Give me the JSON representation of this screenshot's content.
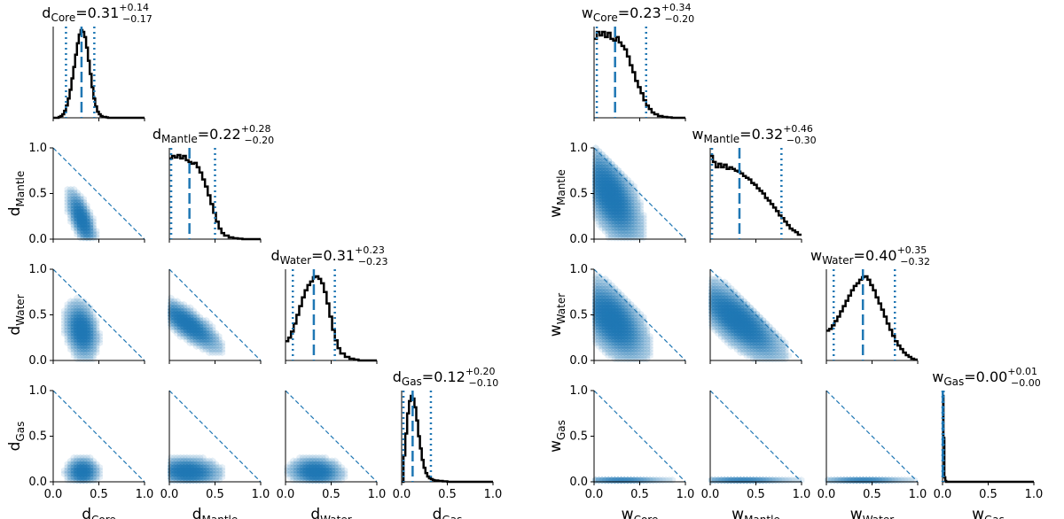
{
  "chart_data": [
    {
      "type": "corner",
      "panel_set": "d",
      "parameters": [
        "Core",
        "Mantle",
        "Water",
        "Gas"
      ],
      "axis_symbol": "d",
      "axis_labels": [
        "Core",
        "Mantle",
        "Water",
        "Gas"
      ],
      "range": [
        0,
        1
      ],
      "ticks": [
        "0.0",
        "0.5",
        "1.0"
      ],
      "titles": [
        {
          "sym": "d",
          "sub": "Core",
          "text": "=0.31",
          "sup": "+0.14",
          "low": "−0.17"
        },
        {
          "sym": "d",
          "sub": "Mantle",
          "text": "=0.22",
          "sup": "+0.28",
          "low": "−0.20"
        },
        {
          "sym": "d",
          "sub": "Water",
          "text": "=0.31",
          "sup": "+0.23",
          "low": "−0.23"
        },
        {
          "sym": "d",
          "sub": "Gas",
          "text": "=0.12",
          "sup": "+0.20",
          "low": "−0.10"
        }
      ],
      "marginals": [
        {
          "median": 0.31,
          "lo": 0.14,
          "hi": 0.45,
          "x": [
            0.0,
            0.02,
            0.04,
            0.06,
            0.08,
            0.1,
            0.12,
            0.14,
            0.16,
            0.18,
            0.2,
            0.22,
            0.24,
            0.26,
            0.28,
            0.3,
            0.32,
            0.34,
            0.36,
            0.38,
            0.4,
            0.42,
            0.44,
            0.46,
            0.48,
            0.5,
            0.52,
            0.54,
            0.56,
            0.58,
            0.6,
            0.7,
            0.8,
            0.9,
            1.0
          ],
          "y": [
            0.0,
            0.0,
            0.0,
            0.01,
            0.02,
            0.04,
            0.08,
            0.14,
            0.22,
            0.32,
            0.45,
            0.58,
            0.72,
            0.85,
            0.95,
            1.0,
            0.98,
            0.92,
            0.8,
            0.65,
            0.5,
            0.35,
            0.22,
            0.13,
            0.07,
            0.04,
            0.02,
            0.01,
            0.01,
            0.005,
            0.0,
            0.0,
            0.0,
            0.0,
            0.0
          ]
        },
        {
          "median": 0.22,
          "lo": 0.02,
          "hi": 0.5,
          "x": [
            0.0,
            0.03,
            0.06,
            0.09,
            0.12,
            0.15,
            0.18,
            0.21,
            0.24,
            0.27,
            0.3,
            0.33,
            0.36,
            0.39,
            0.42,
            0.45,
            0.48,
            0.51,
            0.54,
            0.57,
            0.6,
            0.65,
            0.7,
            0.75,
            0.8,
            0.85,
            1.0
          ],
          "y": [
            0.92,
            0.95,
            0.93,
            0.96,
            0.92,
            0.95,
            0.9,
            0.88,
            0.86,
            0.87,
            0.82,
            0.76,
            0.68,
            0.6,
            0.5,
            0.4,
            0.3,
            0.2,
            0.12,
            0.07,
            0.04,
            0.02,
            0.01,
            0.005,
            0.0,
            0.0,
            0.0
          ]
        },
        {
          "median": 0.31,
          "lo": 0.08,
          "hi": 0.54,
          "x": [
            0.0,
            0.03,
            0.06,
            0.09,
            0.12,
            0.15,
            0.18,
            0.21,
            0.24,
            0.27,
            0.3,
            0.33,
            0.36,
            0.39,
            0.42,
            0.45,
            0.48,
            0.51,
            0.54,
            0.57,
            0.6,
            0.65,
            0.7,
            0.75,
            0.8,
            0.85,
            1.0
          ],
          "y": [
            0.22,
            0.26,
            0.33,
            0.42,
            0.52,
            0.62,
            0.72,
            0.8,
            0.86,
            0.9,
            0.95,
            0.96,
            0.93,
            0.88,
            0.78,
            0.65,
            0.5,
            0.35,
            0.23,
            0.14,
            0.08,
            0.04,
            0.02,
            0.01,
            0.0,
            0.0,
            0.0
          ]
        },
        {
          "median": 0.12,
          "lo": 0.02,
          "hi": 0.32,
          "x": [
            0.0,
            0.02,
            0.04,
            0.06,
            0.08,
            0.1,
            0.12,
            0.14,
            0.16,
            0.18,
            0.2,
            0.22,
            0.24,
            0.26,
            0.28,
            0.3,
            0.32,
            0.34,
            0.36,
            0.4,
            0.45,
            0.5,
            0.6,
            0.7,
            1.0
          ],
          "y": [
            0.0,
            0.3,
            0.55,
            0.78,
            0.92,
            0.98,
            0.95,
            0.85,
            0.7,
            0.52,
            0.38,
            0.25,
            0.16,
            0.1,
            0.06,
            0.04,
            0.03,
            0.02,
            0.015,
            0.01,
            0.005,
            0.0,
            0.0,
            0.0,
            0.0
          ]
        }
      ],
      "densities": [
        {
          "row": 1,
          "col": 0,
          "cx": 0.31,
          "cy": 0.22,
          "sx": 0.07,
          "sy": 0.14,
          "rho": -0.65
        },
        {
          "row": 2,
          "col": 0,
          "cx": 0.31,
          "cy": 0.33,
          "sx": 0.08,
          "sy": 0.14,
          "rho": -0.25
        },
        {
          "row": 2,
          "col": 1,
          "cx": 0.2,
          "cy": 0.4,
          "sx": 0.16,
          "sy": 0.13,
          "rho": -0.8
        },
        {
          "row": 3,
          "col": 0,
          "cx": 0.32,
          "cy": 0.11,
          "sx": 0.08,
          "sy": 0.07,
          "rho": 0.0
        },
        {
          "row": 3,
          "col": 1,
          "cx": 0.2,
          "cy": 0.11,
          "sx": 0.16,
          "sy": 0.07,
          "rho": -0.1
        },
        {
          "row": 3,
          "col": 2,
          "cx": 0.33,
          "cy": 0.11,
          "sx": 0.13,
          "sy": 0.07,
          "rho": -0.1
        }
      ]
    },
    {
      "type": "corner",
      "panel_set": "w",
      "parameters": [
        "Core",
        "Mantle",
        "Water",
        "Gas"
      ],
      "axis_symbol": "w",
      "axis_labels": [
        "Core",
        "Mantle",
        "Water",
        "Gas"
      ],
      "range": [
        0,
        1
      ],
      "ticks": [
        "0.0",
        "0.5",
        "1.0"
      ],
      "titles": [
        {
          "sym": "w",
          "sub": "Core",
          "text": "=0.23",
          "sup": "+0.34",
          "low": "−0.20"
        },
        {
          "sym": "w",
          "sub": "Mantle",
          "text": "=0.32",
          "sup": "+0.46",
          "low": "−0.30"
        },
        {
          "sym": "w",
          "sub": "Water",
          "text": "=0.40",
          "sup": "+0.35",
          "low": "−0.32"
        },
        {
          "sym": "w",
          "sub": "Gas",
          "text": "=0.00",
          "sup": "+0.01",
          "low": "−0.00"
        }
      ],
      "marginals": [
        {
          "median": 0.23,
          "lo": 0.03,
          "hi": 0.57,
          "x": [
            0.0,
            0.03,
            0.06,
            0.09,
            0.12,
            0.15,
            0.18,
            0.21,
            0.24,
            0.27,
            0.3,
            0.33,
            0.36,
            0.39,
            0.42,
            0.45,
            0.48,
            0.51,
            0.54,
            0.57,
            0.6,
            0.63,
            0.66,
            0.7,
            0.75,
            0.8,
            0.85,
            0.9,
            0.95,
            1.0
          ],
          "y": [
            0.9,
            0.98,
            0.94,
            0.98,
            0.92,
            0.97,
            0.9,
            0.88,
            0.92,
            0.86,
            0.82,
            0.78,
            0.7,
            0.6,
            0.52,
            0.42,
            0.35,
            0.28,
            0.2,
            0.14,
            0.1,
            0.06,
            0.04,
            0.02,
            0.01,
            0.005,
            0.0,
            0.0,
            0.0,
            0.0
          ]
        },
        {
          "median": 0.32,
          "lo": 0.02,
          "hi": 0.78,
          "x": [
            0.0,
            0.03,
            0.06,
            0.09,
            0.12,
            0.15,
            0.18,
            0.21,
            0.24,
            0.27,
            0.3,
            0.33,
            0.36,
            0.39,
            0.42,
            0.45,
            0.48,
            0.51,
            0.54,
            0.57,
            0.6,
            0.63,
            0.66,
            0.69,
            0.72,
            0.75,
            0.78,
            0.81,
            0.84,
            0.87,
            0.9,
            0.93,
            0.96,
            1.0
          ],
          "y": [
            0.95,
            0.88,
            0.82,
            0.86,
            0.82,
            0.85,
            0.8,
            0.82,
            0.8,
            0.78,
            0.77,
            0.75,
            0.72,
            0.7,
            0.68,
            0.64,
            0.62,
            0.58,
            0.55,
            0.52,
            0.47,
            0.44,
            0.4,
            0.36,
            0.32,
            0.27,
            0.24,
            0.2,
            0.16,
            0.12,
            0.1,
            0.08,
            0.05,
            0.05
          ]
        },
        {
          "median": 0.4,
          "lo": 0.08,
          "hi": 0.75,
          "x": [
            0.0,
            0.03,
            0.06,
            0.09,
            0.12,
            0.15,
            0.18,
            0.21,
            0.24,
            0.27,
            0.3,
            0.33,
            0.36,
            0.39,
            0.42,
            0.45,
            0.48,
            0.51,
            0.54,
            0.57,
            0.6,
            0.63,
            0.66,
            0.69,
            0.72,
            0.75,
            0.78,
            0.81,
            0.84,
            0.87,
            0.9,
            0.93,
            0.96,
            1.0
          ],
          "y": [
            0.34,
            0.36,
            0.4,
            0.45,
            0.5,
            0.56,
            0.62,
            0.68,
            0.74,
            0.8,
            0.85,
            0.88,
            0.92,
            0.95,
            0.96,
            0.92,
            0.86,
            0.8,
            0.72,
            0.65,
            0.58,
            0.5,
            0.42,
            0.35,
            0.28,
            0.22,
            0.17,
            0.13,
            0.09,
            0.06,
            0.04,
            0.02,
            0.01,
            0.0
          ]
        },
        {
          "median": 0.003,
          "lo": 0.0,
          "hi": 0.012,
          "x": [
            0.0,
            0.01,
            0.02,
            0.03,
            0.04,
            0.05,
            0.06,
            0.08,
            0.1,
            0.2,
            0.4,
            0.6,
            0.8,
            1.0
          ],
          "y": [
            0.98,
            0.5,
            0.05,
            0.01,
            0.0,
            0.0,
            0.0,
            0.0,
            0.0,
            0.0,
            0.0,
            0.0,
            0.0,
            0.0
          ]
        }
      ],
      "densities": [
        {
          "row": 1,
          "col": 0,
          "cx": 0.18,
          "cy": 0.48,
          "sx": 0.15,
          "sy": 0.24,
          "rho": -0.6
        },
        {
          "row": 2,
          "col": 0,
          "cx": 0.2,
          "cy": 0.44,
          "sx": 0.17,
          "sy": 0.2,
          "rho": -0.55
        },
        {
          "row": 2,
          "col": 1,
          "cx": 0.3,
          "cy": 0.44,
          "sx": 0.22,
          "sy": 0.2,
          "rho": -0.75
        },
        {
          "row": 3,
          "col": 0,
          "cx": 0.3,
          "cy": 0.01,
          "sx": 0.25,
          "sy": 0.008,
          "rho": 0.0
        },
        {
          "row": 3,
          "col": 1,
          "cx": 0.35,
          "cy": 0.01,
          "sx": 0.28,
          "sy": 0.008,
          "rho": 0.0
        },
        {
          "row": 3,
          "col": 2,
          "cx": 0.4,
          "cy": 0.01,
          "sx": 0.25,
          "sy": 0.008,
          "rho": 0.0
        }
      ]
    }
  ]
}
